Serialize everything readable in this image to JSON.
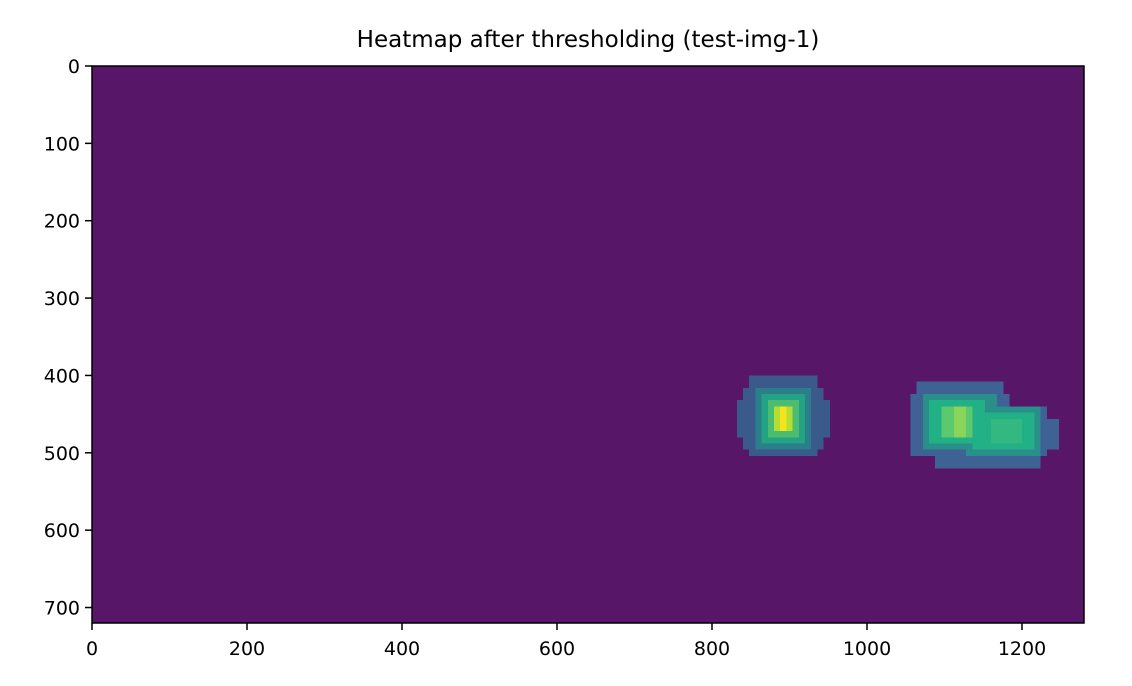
{
  "chart_data": {
    "type": "heatmap",
    "title": "Heatmap after thresholding (test-img-1)",
    "xlabel": "",
    "ylabel": "",
    "xlim": [
      0,
      1280
    ],
    "ylim": [
      720,
      0
    ],
    "x_ticks": [
      "0",
      "200",
      "400",
      "600",
      "800",
      "1000",
      "1200"
    ],
    "y_ticks": [
      "0",
      "100",
      "200",
      "300",
      "400",
      "500",
      "600",
      "700"
    ],
    "colormap": "viridis",
    "background_color": "#581668",
    "grid": false,
    "cells": [
      {
        "x0": 848,
        "x1": 936,
        "y0": 400,
        "y1": 416,
        "color": "#3b5a8c"
      },
      {
        "x0": 840,
        "x1": 944,
        "y0": 416,
        "y1": 432,
        "color": "#3b5a8c"
      },
      {
        "x0": 832,
        "x1": 952,
        "y0": 432,
        "y1": 480,
        "color": "#3b5a8c"
      },
      {
        "x0": 840,
        "x1": 944,
        "y0": 480,
        "y1": 496,
        "color": "#3b5a8c"
      },
      {
        "x0": 848,
        "x1": 936,
        "y0": 496,
        "y1": 504,
        "color": "#3b5a8c"
      },
      {
        "x0": 856,
        "x1": 928,
        "y0": 416,
        "y1": 496,
        "color": "#2a7f8b"
      },
      {
        "x0": 864,
        "x1": 920,
        "y0": 424,
        "y1": 488,
        "color": "#23a284"
      },
      {
        "x0": 872,
        "x1": 912,
        "y0": 432,
        "y1": 480,
        "color": "#4cbd70"
      },
      {
        "x0": 880,
        "x1": 904,
        "y0": 440,
        "y1": 472,
        "color": "#b6dd31"
      },
      {
        "x0": 888,
        "x1": 896,
        "y0": 440,
        "y1": 472,
        "color": "#f3e51d"
      },
      {
        "x0": 1064,
        "x1": 1176,
        "y0": 408,
        "y1": 424,
        "color": "#3e6294"
      },
      {
        "x0": 1056,
        "x1": 1184,
        "y0": 424,
        "y1": 440,
        "color": "#3e6294"
      },
      {
        "x0": 1056,
        "x1": 1232,
        "y0": 440,
        "y1": 504,
        "color": "#3e6294"
      },
      {
        "x0": 1232,
        "x1": 1248,
        "y0": 456,
        "y1": 496,
        "color": "#3e6294"
      },
      {
        "x0": 1088,
        "x1": 1224,
        "y0": 504,
        "y1": 520,
        "color": "#3e6294"
      },
      {
        "x0": 1072,
        "x1": 1168,
        "y0": 424,
        "y1": 496,
        "color": "#2a8f8a"
      },
      {
        "x0": 1128,
        "x1": 1224,
        "y0": 440,
        "y1": 504,
        "color": "#2a8f8a"
      },
      {
        "x0": 1080,
        "x1": 1152,
        "y0": 432,
        "y1": 488,
        "color": "#22b086"
      },
      {
        "x0": 1136,
        "x1": 1216,
        "y0": 448,
        "y1": 496,
        "color": "#22b086"
      },
      {
        "x0": 1096,
        "x1": 1136,
        "y0": 440,
        "y1": 480,
        "color": "#5dc96e"
      },
      {
        "x0": 1112,
        "x1": 1128,
        "y0": 440,
        "y1": 480,
        "color": "#8ad45c"
      },
      {
        "x0": 1160,
        "x1": 1200,
        "y0": 456,
        "y1": 488,
        "color": "#33b881"
      }
    ]
  }
}
